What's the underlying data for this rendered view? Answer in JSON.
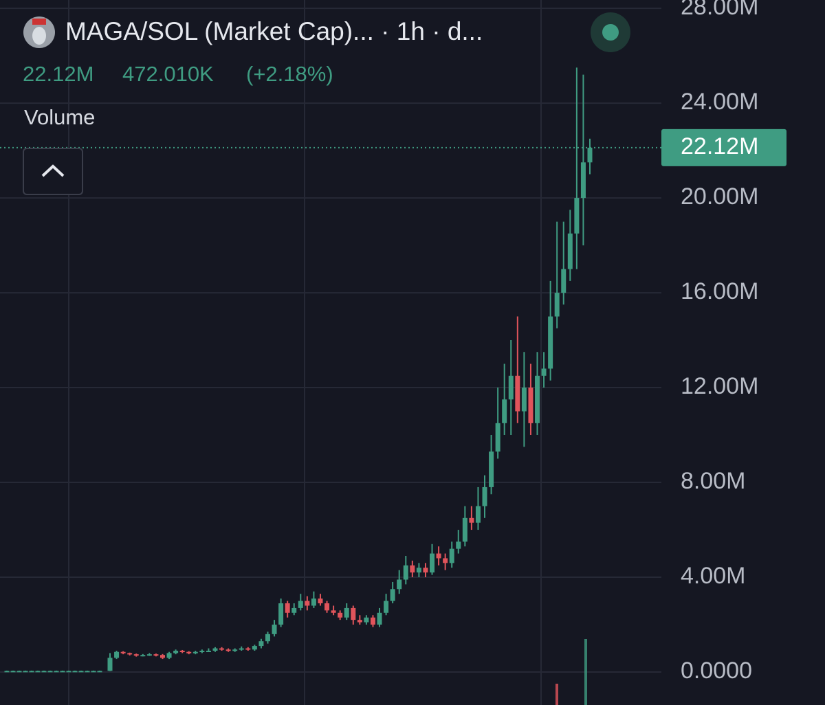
{
  "header": {
    "title": "MAGA/SOL (Market Cap)... · 1h · d...",
    "price": "22.12M",
    "change": "472.010K",
    "change_pct": "(+2.18%)",
    "indicator": "Volume"
  },
  "chart_data": {
    "type": "candlestick",
    "up_color": "#3f9c82",
    "down_color": "#e0545b",
    "ylim": [
      -1.39,
      28.35
    ],
    "yticks": [
      {
        "value": 0,
        "label": "0.0000"
      },
      {
        "value": 4,
        "label": "4.00M"
      },
      {
        "value": 8,
        "label": "8.00M"
      },
      {
        "value": 12,
        "label": "12.00M"
      },
      {
        "value": 16,
        "label": "16.00M"
      },
      {
        "value": 20,
        "label": "20.00M"
      },
      {
        "value": 24,
        "label": "24.00M"
      },
      {
        "value": 28,
        "label": "28.00M"
      }
    ],
    "grid": true,
    "last_price": {
      "value": 22.12,
      "label": "22.12M"
    },
    "open": [
      0.05,
      0.05,
      0.05,
      0.05,
      0.05,
      0.05,
      0.05,
      0.05,
      0.05,
      0.05,
      0.05,
      0.05,
      0.05,
      0.05,
      0.05,
      0.05,
      0.05,
      0.6,
      0.85,
      0.8,
      0.75,
      0.7,
      0.72,
      0.75,
      0.72,
      0.6,
      0.8,
      0.9,
      0.85,
      0.8,
      0.85,
      0.9,
      0.9,
      1.0,
      0.95,
      0.9,
      0.95,
      1.0,
      0.95,
      1.1,
      1.3,
      1.6,
      2.0,
      2.9,
      2.5,
      2.7,
      3.0,
      2.8,
      3.1,
      2.9,
      2.6,
      2.5,
      2.3,
      2.7,
      2.2,
      2.1,
      2.3,
      2.0,
      2.5,
      3.0,
      3.5,
      3.9,
      4.5,
      4.2,
      4.4,
      4.2,
      5.0,
      4.8,
      4.6,
      5.2,
      5.5,
      6.5,
      6.3,
      7.0,
      7.8,
      9.3,
      10.5,
      11.5,
      12.5,
      11.0,
      12.0,
      10.5,
      12.5,
      12.8,
      15.0,
      16.0,
      17.0,
      18.5,
      20.0,
      21.5
    ],
    "high": [
      0.06,
      0.06,
      0.06,
      0.06,
      0.06,
      0.06,
      0.06,
      0.06,
      0.06,
      0.06,
      0.06,
      0.06,
      0.06,
      0.06,
      0.06,
      0.06,
      0.8,
      0.9,
      0.88,
      0.82,
      0.78,
      0.76,
      0.8,
      0.78,
      0.76,
      0.85,
      0.95,
      0.93,
      0.88,
      0.9,
      0.95,
      1.0,
      1.05,
      1.05,
      1.0,
      1.0,
      1.08,
      1.05,
      1.15,
      1.4,
      1.7,
      2.2,
      3.1,
      3.0,
      2.9,
      3.3,
      3.2,
      3.4,
      3.3,
      3.0,
      2.8,
      2.6,
      2.9,
      2.8,
      2.4,
      2.4,
      2.4,
      2.7,
      3.3,
      3.8,
      4.3,
      4.9,
      4.7,
      4.6,
      4.6,
      5.4,
      5.3,
      5.0,
      5.5,
      6.0,
      7.0,
      7.0,
      7.8,
      8.3,
      10.0,
      12.0,
      13.0,
      14.0,
      15.0,
      13.5,
      13.0,
      13.5,
      13.5,
      16.5,
      19.0,
      19.0,
      19.5,
      25.5,
      25.2,
      22.5
    ],
    "low": [
      0.04,
      0.04,
      0.04,
      0.04,
      0.04,
      0.04,
      0.04,
      0.04,
      0.04,
      0.04,
      0.04,
      0.04,
      0.04,
      0.04,
      0.04,
      0.04,
      0.04,
      0.55,
      0.75,
      0.7,
      0.65,
      0.66,
      0.68,
      0.66,
      0.55,
      0.55,
      0.75,
      0.8,
      0.75,
      0.75,
      0.8,
      0.85,
      0.85,
      0.9,
      0.85,
      0.85,
      0.9,
      0.9,
      0.9,
      1.0,
      1.2,
      1.5,
      1.9,
      2.3,
      2.4,
      2.6,
      2.6,
      2.7,
      2.8,
      2.5,
      2.4,
      2.2,
      2.2,
      2.0,
      2.0,
      2.0,
      1.9,
      1.9,
      2.4,
      2.9,
      3.3,
      3.7,
      4.0,
      4.0,
      4.0,
      4.1,
      4.5,
      4.3,
      4.4,
      5.0,
      5.3,
      6.0,
      6.0,
      6.5,
      7.5,
      9.0,
      10.0,
      10.0,
      10.5,
      9.5,
      10.0,
      10.0,
      12.0,
      12.3,
      14.5,
      15.5,
      16.5,
      17.0,
      18.0,
      21.0
    ],
    "close": [
      0.05,
      0.05,
      0.05,
      0.05,
      0.05,
      0.05,
      0.05,
      0.05,
      0.05,
      0.05,
      0.05,
      0.05,
      0.05,
      0.05,
      0.05,
      0.05,
      0.6,
      0.85,
      0.8,
      0.75,
      0.7,
      0.72,
      0.75,
      0.72,
      0.6,
      0.8,
      0.9,
      0.85,
      0.8,
      0.85,
      0.9,
      0.9,
      1.0,
      0.95,
      0.9,
      0.95,
      1.0,
      0.95,
      1.1,
      1.3,
      1.6,
      2.0,
      2.9,
      2.5,
      2.7,
      3.0,
      2.8,
      3.1,
      2.9,
      2.6,
      2.5,
      2.3,
      2.7,
      2.2,
      2.1,
      2.3,
      2.0,
      2.5,
      3.0,
      3.5,
      3.9,
      4.5,
      4.2,
      4.4,
      4.2,
      5.0,
      4.8,
      4.6,
      5.2,
      5.5,
      6.5,
      6.3,
      7.0,
      7.8,
      9.3,
      10.5,
      11.5,
      12.5,
      11.0,
      12.0,
      10.5,
      12.5,
      12.8,
      15.0,
      16.0,
      17.0,
      18.5,
      20.0,
      21.5,
      22.12
    ]
  }
}
